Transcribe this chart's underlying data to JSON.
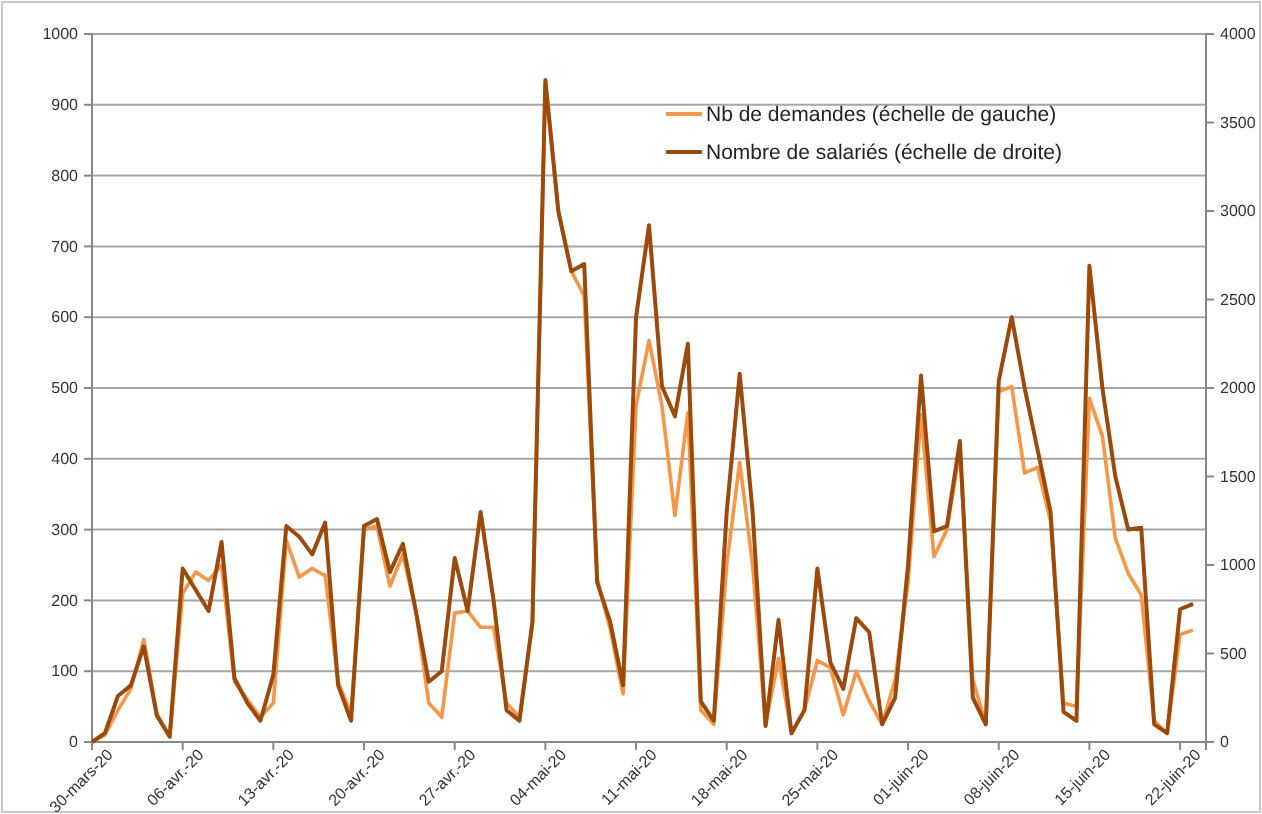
{
  "chart_data": {
    "type": "line",
    "x": [
      "--03-30",
      "--03-31",
      "--04-01",
      "--04-02",
      "--04-03",
      "--04-04",
      "--04-05",
      "--04-06",
      "--04-07",
      "--04-08",
      "--04-09",
      "--04-10",
      "--04-11",
      "--04-12",
      "--04-13",
      "--04-14",
      "--04-15",
      "--04-16",
      "--04-17",
      "--04-18",
      "--04-19",
      "--04-20",
      "--04-21",
      "--04-22",
      "--04-23",
      "--04-24",
      "--04-25",
      "--04-26",
      "--04-27",
      "--04-28",
      "--04-29",
      "--04-30",
      "--05-01",
      "--05-02",
      "--05-03",
      "--05-04",
      "--05-05",
      "--05-06",
      "--05-07",
      "--05-08",
      "--05-09",
      "--05-10",
      "--05-11",
      "--05-12",
      "--05-13",
      "--05-14",
      "--05-15",
      "--05-16",
      "--05-17",
      "--05-18",
      "--05-19",
      "--05-20",
      "--05-21",
      "--05-22",
      "--05-23",
      "--05-24",
      "--05-25",
      "--05-26",
      "--05-27",
      "--05-28",
      "--05-29",
      "--05-30",
      "--05-31",
      "--06-01",
      "--06-02",
      "--06-03",
      "--06-04",
      "--06-05",
      "--06-06",
      "--06-07",
      "--06-08",
      "--06-09",
      "--06-10",
      "--06-11",
      "--06-12",
      "--06-13",
      "--06-14",
      "--06-15",
      "--06-16",
      "--06-17",
      "--06-18",
      "--06-19",
      "--06-20",
      "--06-21",
      "--06-22",
      "--06-23"
    ],
    "series": [
      {
        "name": "Nb de demandes (échelle de gauche)",
        "color": "#f79646",
        "values": [
          0,
          10,
          45,
          75,
          145,
          40,
          8,
          210,
          240,
          228,
          250,
          85,
          60,
          35,
          55,
          285,
          233,
          245,
          235,
          85,
          40,
          300,
          305,
          220,
          265,
          185,
          55,
          35,
          182,
          185,
          162,
          162,
          55,
          35,
          165,
          930,
          750,
          665,
          630,
          230,
          160,
          68,
          475,
          567,
          475,
          320,
          465,
          45,
          25,
          250,
          395,
          250,
          25,
          118,
          12,
          45,
          115,
          105,
          38,
          100,
          58,
          25,
          88,
          225,
          462,
          262,
          300,
          412,
          88,
          25,
          495,
          502,
          380,
          388,
          312,
          55,
          50,
          485,
          432,
          288,
          238,
          208,
          30,
          12,
          152,
          158
        ]
      },
      {
        "name": "Nombre de salariés (échelle de droite)",
        "color": "#9c4a0c",
        "axis": "y2",
        "values": [
          0,
          50,
          260,
          320,
          540,
          150,
          30,
          980,
          860,
          740,
          1130,
          360,
          220,
          120,
          380,
          1220,
          1160,
          1060,
          1240,
          320,
          120,
          1220,
          1260,
          960,
          1120,
          740,
          340,
          400,
          1040,
          740,
          1300,
          800,
          180,
          120,
          680,
          3740,
          3000,
          2660,
          2700,
          900,
          680,
          320,
          2400,
          2920,
          2010,
          1840,
          2250,
          230,
          120,
          1300,
          2080,
          1300,
          90,
          690,
          50,
          180,
          980,
          450,
          300,
          700,
          620,
          100,
          250,
          1000,
          2070,
          1190,
          1220,
          1700,
          250,
          100,
          2040,
          2400,
          2000,
          1650,
          1300,
          170,
          120,
          2690,
          2000,
          1500,
          1200,
          1210,
          100,
          50,
          750,
          780
        ]
      }
    ],
    "xlim": [
      "--03-30",
      "--06-24"
    ],
    "xticks": [
      {
        "value": "--03-30",
        "label": "30-mars-20"
      },
      {
        "value": "--04-06",
        "label": "06-avr.-20"
      },
      {
        "value": "--04-13",
        "label": "13-avr.-20"
      },
      {
        "value": "--04-20",
        "label": "20-avr.-20"
      },
      {
        "value": "--04-27",
        "label": "27-avr.-20"
      },
      {
        "value": "--05-04",
        "label": "04-mai-20"
      },
      {
        "value": "--05-11",
        "label": "11-mai-20"
      },
      {
        "value": "--05-18",
        "label": "18-mai-20"
      },
      {
        "value": "--05-25",
        "label": "25-mai-20"
      },
      {
        "value": "--06-01",
        "label": "01-juin-20"
      },
      {
        "value": "--06-08",
        "label": "08-juin-20"
      },
      {
        "value": "--06-15",
        "label": "15-juin-20"
      },
      {
        "value": "--06-22",
        "label": "22-juin-20"
      }
    ],
    "ylim": [
      0,
      1000
    ],
    "yticks": [
      0,
      100,
      200,
      300,
      400,
      500,
      600,
      700,
      800,
      900,
      1000
    ],
    "y2lim": [
      0,
      4000
    ],
    "y2ticks": [
      0,
      500,
      1000,
      1500,
      2000,
      2500,
      3000,
      3500,
      4000
    ],
    "grid": "y",
    "legend": "top right",
    "marker": "none",
    "line_style": "solid"
  }
}
